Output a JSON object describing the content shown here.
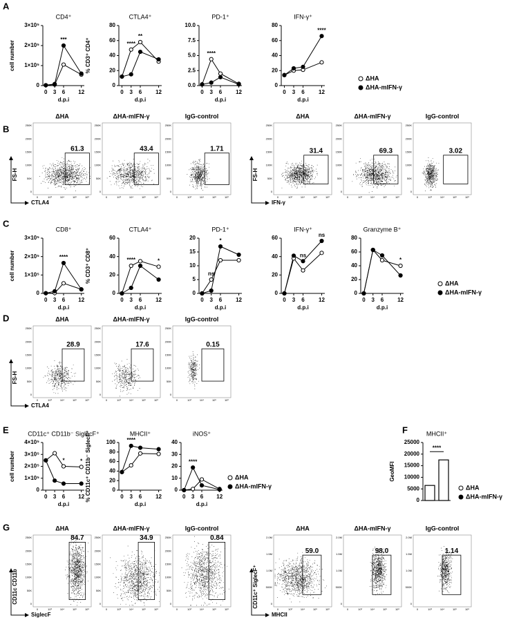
{
  "panel_labels": [
    "A",
    "B",
    "C",
    "D",
    "E",
    "F",
    "G"
  ],
  "chart_data": [
    {
      "type": "line",
      "title": "CD4⁺",
      "ylabel": "cell number",
      "xlabel": "d.p.i",
      "x": [
        0,
        3,
        6,
        12
      ],
      "xlim": [
        -1,
        13
      ],
      "xticks": [
        0,
        3,
        6,
        12
      ],
      "ylim": [
        0,
        300000
      ],
      "yticks": [
        0,
        {
          "value": 100000,
          "label": "1×10⁵"
        },
        {
          "value": 200000,
          "label": "2×10⁵"
        },
        {
          "value": 300000,
          "label": "3×10⁵"
        }
      ],
      "series": [
        {
          "name": "ΔHA",
          "color": "#000000",
          "open": true,
          "values": [
            2000,
            5000,
            105000,
            55000
          ]
        },
        {
          "name": "ΔHA-mIFN-γ",
          "color": "#000000",
          "open": false,
          "values": [
            2000,
            8000,
            200000,
            60000
          ]
        }
      ],
      "annotations": [
        {
          "text": "***",
          "x": 6
        }
      ]
    },
    {
      "type": "line",
      "title": "CTLA4⁺",
      "ylabel": "% CD3⁺ CD4⁺",
      "xlabel": "d.p.i",
      "x": [
        0,
        3,
        6,
        12
      ],
      "xlim": [
        -1,
        13
      ],
      "xticks": [
        0,
        3,
        6,
        12
      ],
      "ylim": [
        0,
        80
      ],
      "yticks": [
        0,
        20,
        40,
        60,
        80
      ],
      "series": [
        {
          "name": "ΔHA",
          "color": "#000000",
          "open": true,
          "values": [
            12,
            48,
            58,
            32
          ]
        },
        {
          "name": "ΔHA-mIFN-γ",
          "color": "#000000",
          "open": false,
          "values": [
            12,
            15,
            45,
            35
          ]
        }
      ],
      "annotations": [
        {
          "text": "****",
          "x": 3
        },
        {
          "text": "**",
          "x": 6
        }
      ]
    },
    {
      "type": "line",
      "title": "PD-1⁺",
      "xlabel": "d.p.i",
      "x": [
        0,
        3,
        6,
        12
      ],
      "xlim": [
        -1,
        13
      ],
      "xticks": [
        0,
        3,
        6,
        12
      ],
      "ylim": [
        0,
        10
      ],
      "yticks": [
        {
          "value": 0,
          "label": "0.0"
        },
        {
          "value": 2.5,
          "label": "2.5"
        },
        {
          "value": 5,
          "label": "5.0"
        },
        {
          "value": 7.5,
          "label": "7.5"
        },
        {
          "value": 10,
          "label": "10.0"
        }
      ],
      "series": [
        {
          "name": "ΔHA",
          "color": "#000000",
          "open": true,
          "values": [
            0.2,
            4.4,
            2.0,
            0.3
          ]
        },
        {
          "name": "ΔHA-mIFN-γ",
          "color": "#000000",
          "open": false,
          "values": [
            0.2,
            0.5,
            1.4,
            0.2
          ]
        }
      ],
      "annotations": [
        {
          "text": "****",
          "x": 3
        }
      ]
    },
    {
      "type": "line",
      "title": "IFN-γ⁺",
      "xlabel": "d.p.i",
      "legend": "right",
      "x": [
        0,
        3,
        6,
        12
      ],
      "xlim": [
        -1,
        13
      ],
      "xticks": [
        0,
        3,
        6,
        12
      ],
      "ylim": [
        0,
        80
      ],
      "yticks": [
        0,
        20,
        40,
        60,
        80
      ],
      "series": [
        {
          "name": "ΔHA",
          "color": "#000000",
          "open": true,
          "values": [
            14,
            20,
            21,
            31
          ]
        },
        {
          "name": "ΔHA-mIFN-γ",
          "color": "#000000",
          "open": false,
          "values": [
            14,
            23,
            25,
            66
          ]
        }
      ],
      "annotations": [
        {
          "text": "****",
          "x": 12
        }
      ]
    },
    {
      "type": "line",
      "title": "CD8⁺",
      "ylabel": "cell number",
      "xlabel": "d.p.i",
      "x": [
        0,
        3,
        6,
        12
      ],
      "xlim": [
        -1,
        13
      ],
      "xticks": [
        0,
        3,
        6,
        12
      ],
      "ylim": [
        0,
        300000
      ],
      "yticks": [
        0,
        {
          "value": 100000,
          "label": "1×10⁵"
        },
        {
          "value": 200000,
          "label": "2×10⁵"
        },
        {
          "value": 300000,
          "label": "3×10⁵"
        }
      ],
      "series": [
        {
          "name": "ΔHA",
          "color": "#000000",
          "open": true,
          "values": [
            1000,
            2000,
            55000,
            22000
          ]
        },
        {
          "name": "ΔHA-mIFN-γ",
          "color": "#000000",
          "open": false,
          "values": [
            1000,
            12000,
            165000,
            22000
          ]
        }
      ],
      "annotations": [
        {
          "text": "****",
          "x": 6
        }
      ]
    },
    {
      "type": "line",
      "title": "CTLA4⁺",
      "ylabel": "% CD3⁺ CD8⁺",
      "xlabel": "d.p.i",
      "x": [
        0,
        3,
        6,
        12
      ],
      "xlim": [
        -1,
        13
      ],
      "xticks": [
        0,
        3,
        6,
        12
      ],
      "ylim": [
        0,
        60
      ],
      "yticks": [
        0,
        20,
        40,
        60
      ],
      "series": [
        {
          "name": "ΔHA",
          "color": "#000000",
          "open": true,
          "values": [
            0,
            30,
            35,
            29
          ]
        },
        {
          "name": "ΔHA-mIFN-γ",
          "color": "#000000",
          "open": false,
          "values": [
            0,
            6,
            30,
            15
          ]
        }
      ],
      "annotations": [
        {
          "text": "****",
          "x": 3
        },
        {
          "text": "*",
          "x": 12
        }
      ]
    },
    {
      "type": "line",
      "title": "PD-1⁺",
      "xlabel": "d.p.i",
      "x": [
        0,
        3,
        6,
        12
      ],
      "xlim": [
        -1,
        13
      ],
      "xticks": [
        0,
        3,
        6,
        12
      ],
      "ylim": [
        0,
        20
      ],
      "yticks": [
        0,
        5,
        10,
        15,
        20
      ],
      "series": [
        {
          "name": "ΔHA",
          "color": "#000000",
          "open": true,
          "values": [
            0,
            5,
            12,
            12
          ]
        },
        {
          "name": "ΔHA-mIFN-γ",
          "color": "#000000",
          "open": false,
          "values": [
            0,
            1,
            17,
            14
          ]
        }
      ],
      "annotations": [
        {
          "text": "ns",
          "x": 3
        },
        {
          "text": "*",
          "x": 6
        }
      ]
    },
    {
      "type": "line",
      "title": "IFN-γ⁺",
      "xlabel": "d.p.i",
      "x": [
        0,
        3,
        6,
        12
      ],
      "xlim": [
        -1,
        13
      ],
      "xticks": [
        0,
        3,
        6,
        12
      ],
      "ylim": [
        0,
        60
      ],
      "yticks": [
        0,
        20,
        40,
        60
      ],
      "series": [
        {
          "name": "ΔHA",
          "color": "#000000",
          "open": true,
          "values": [
            0,
            38,
            25,
            44
          ]
        },
        {
          "name": "ΔHA-mIFN-γ",
          "color": "#000000",
          "open": false,
          "values": [
            0,
            41,
            35,
            57
          ]
        }
      ],
      "annotations": [
        {
          "text": "ns",
          "x": 6
        },
        {
          "text": "ns",
          "x": 12
        }
      ]
    },
    {
      "type": "line",
      "title": "Granzyme B⁺",
      "xlabel": "d.p.i",
      "legend": "right",
      "x": [
        0,
        3,
        6,
        12
      ],
      "xlim": [
        -1,
        13
      ],
      "xticks": [
        0,
        3,
        6,
        12
      ],
      "ylim": [
        0,
        80
      ],
      "yticks": [
        0,
        20,
        40,
        60,
        80
      ],
      "series": [
        {
          "name": "ΔHA",
          "color": "#000000",
          "open": true,
          "values": [
            0,
            63,
            48,
            40
          ]
        },
        {
          "name": "ΔHA-mIFN-γ",
          "color": "#000000",
          "open": false,
          "values": [
            0,
            63,
            55,
            26
          ]
        }
      ],
      "annotations": [
        {
          "text": "*",
          "x": 12
        }
      ]
    },
    {
      "type": "line",
      "title": "CD11c⁺ CD11b⁻ SiglecF⁺",
      "ylabel": "cell number",
      "xlabel": "d.p.i",
      "x": [
        0,
        3,
        6,
        12
      ],
      "xlim": [
        -1,
        13
      ],
      "xticks": [
        0,
        3,
        6,
        12
      ],
      "ylim": [
        0,
        400000
      ],
      "yticks": [
        0,
        {
          "value": 100000,
          "label": "1×10⁵"
        },
        {
          "value": 200000,
          "label": "2×10⁵"
        },
        {
          "value": 300000,
          "label": "3×10⁵"
        },
        {
          "value": 400000,
          "label": "4×10⁵"
        }
      ],
      "series": [
        {
          "name": "ΔHA",
          "color": "#000000",
          "open": true,
          "values": [
            250000,
            310000,
            200000,
            195000
          ]
        },
        {
          "name": "ΔHA-mIFN-γ",
          "color": "#000000",
          "open": false,
          "values": [
            250000,
            80000,
            55000,
            55000
          ]
        }
      ],
      "annotations": [
        {
          "text": "*",
          "x": 6
        },
        {
          "text": "*",
          "x": 12
        }
      ]
    },
    {
      "type": "line",
      "title": "MHCII⁺",
      "ylabel": "% CD11c⁺ CD11b⁻ SiglecF⁺",
      "xlabel": "d.p.i",
      "x": [
        0,
        3,
        6,
        12
      ],
      "xlim": [
        -1,
        13
      ],
      "xticks": [
        0,
        3,
        6,
        12
      ],
      "ylim": [
        0,
        100
      ],
      "yticks": [
        0,
        20,
        40,
        60,
        80,
        100
      ],
      "series": [
        {
          "name": "ΔHA",
          "color": "#000000",
          "open": true,
          "values": [
            38,
            52,
            77,
            76
          ]
        },
        {
          "name": "ΔHA-mIFN-γ",
          "color": "#000000",
          "open": false,
          "values": [
            38,
            93,
            89,
            86
          ]
        }
      ],
      "annotations": [
        {
          "text": "****",
          "x": 3
        }
      ]
    },
    {
      "type": "line",
      "title": "iNOS⁺",
      "xlabel": "d.p.i",
      "legend": "right",
      "x": [
        0,
        3,
        6,
        12
      ],
      "xlim": [
        -1,
        13
      ],
      "xticks": [
        0,
        3,
        6,
        12
      ],
      "ylim": [
        0,
        40
      ],
      "yticks": [
        0,
        10,
        20,
        30,
        40
      ],
      "series": [
        {
          "name": "ΔHA",
          "color": "#000000",
          "open": true,
          "values": [
            0,
            1,
            9,
            1
          ]
        },
        {
          "name": "ΔHA-mIFN-γ",
          "color": "#000000",
          "open": false,
          "values": [
            0,
            19,
            4,
            0.5
          ]
        }
      ],
      "annotations": [
        {
          "text": "****",
          "x": 3
        }
      ]
    },
    {
      "type": "bar",
      "title": "MHCII⁺",
      "ylabel": "GeoMFI",
      "legend": "right",
      "categories": [
        "ΔHA",
        "ΔHA-mIFN-γ"
      ],
      "values": [
        6500,
        17500
      ],
      "color": "#ffffff",
      "ylim": [
        0,
        25000
      ],
      "yticks": [
        0,
        5000,
        10000,
        15000,
        20000,
        25000
      ],
      "annotations": [
        {
          "text": "****",
          "x": 0.5
        }
      ]
    }
  ],
  "flow_panels": [
    {
      "titles": [
        "ΔHA",
        "ΔHA-mIFN-γ",
        "IgG-control"
      ],
      "gates": [
        "61.3",
        "43.4",
        "1.71"
      ],
      "ylabel": "FS-H",
      "xlabel": "CTLA4",
      "yticks": [
        "250K",
        "200K",
        "150K",
        "100K",
        "50K",
        "0"
      ],
      "xticks": [
        "0",
        "10³",
        "10⁴",
        "10⁵",
        "10⁶"
      ]
    },
    {
      "titles": [
        "ΔHA",
        "ΔHA-mIFN-γ",
        "IgG-control"
      ],
      "gates": [
        "31.4",
        "69.3",
        "3.02"
      ],
      "ylabel": "FS-H",
      "xlabel": "IFN-γ",
      "yticks": [
        "250K",
        "200K",
        "150K",
        "100K",
        "50K",
        "0"
      ],
      "xticks": [
        "0",
        "10³",
        "10⁴",
        "10⁵",
        "10⁶"
      ]
    },
    {
      "titles": [
        "ΔHA",
        "ΔHA-mIFN-γ",
        "IgG-control"
      ],
      "gates": [
        "28.9",
        "17.6",
        "0.15"
      ],
      "ylabel": "FS-H",
      "xlabel": "CTLA4",
      "yticks": [
        "250K",
        "200K",
        "150K",
        "100K",
        "50K",
        "0"
      ],
      "xticks": [
        "0",
        "10³",
        "10⁴",
        "10⁵",
        "10⁶"
      ]
    },
    {
      "titles": [
        "ΔHA",
        "ΔHA-mIFN-γ",
        "IgG-control"
      ],
      "gates": [
        "84.7",
        "34.9",
        "0.84"
      ],
      "ylabel": "CD11c CD11b",
      "xlabel": "SiglecF",
      "yticks": [
        "250K",
        "200K",
        "150K",
        "100K",
        "50K",
        "0"
      ],
      "xticks": [
        "0",
        "10³",
        "10⁴",
        "10⁵",
        "10⁶"
      ]
    },
    {
      "titles": [
        "ΔHA",
        "ΔHA-mIFN-γ",
        "IgG-control"
      ],
      "gates": [
        "59.0",
        "98.0",
        "1.14"
      ],
      "ylabel": "CD11c⁺ SiglecF⁺",
      "xlabel": "MHCII",
      "yticks": [
        "2.0M",
        "1.5M",
        "1.0M",
        "500K",
        "0"
      ],
      "xticks": [
        "0",
        "10³",
        "10⁴",
        "10⁵",
        "10⁶"
      ]
    }
  ]
}
